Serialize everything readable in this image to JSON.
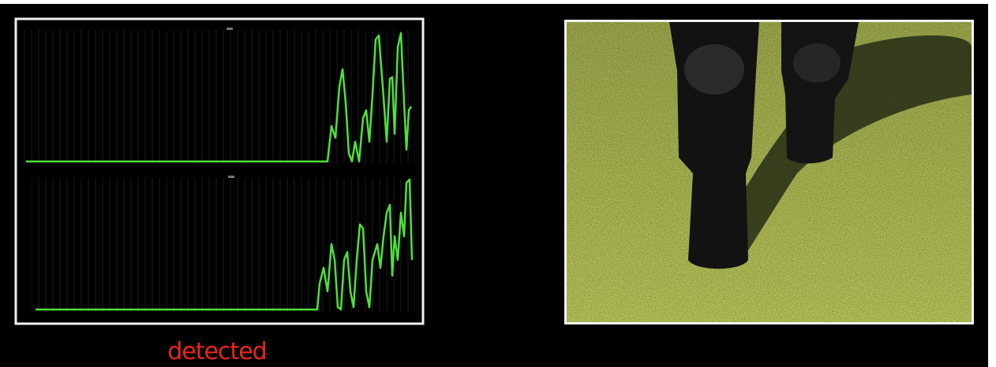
{
  "status": {
    "label": "detected"
  }
}
